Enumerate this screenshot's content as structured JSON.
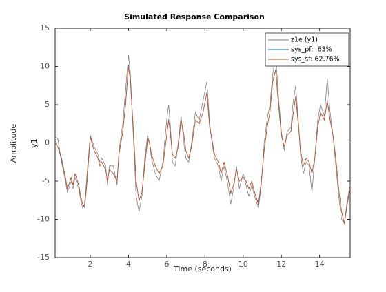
{
  "chart_data": {
    "type": "line",
    "title": "Simulated Response Comparison",
    "xlabel": "Time (seconds)",
    "ylabel": "Amplitude",
    "channel_label": "y1",
    "xlim": [
      0.16,
      15.6
    ],
    "ylim": [
      -15,
      15
    ],
    "xticks": [
      2,
      4,
      6,
      8,
      10,
      12,
      14
    ],
    "yticks": [
      -15,
      -10,
      -5,
      0,
      5,
      10,
      15
    ],
    "grid": false,
    "legend": "northeast",
    "x": [
      0.16,
      0.3,
      0.5,
      0.7,
      0.8,
      1.0,
      1.1,
      1.2,
      1.4,
      1.5,
      1.6,
      1.7,
      1.8,
      2.0,
      2.2,
      2.4,
      2.5,
      2.6,
      2.8,
      2.9,
      3.0,
      3.2,
      3.4,
      3.5,
      3.7,
      3.85,
      4.0,
      4.1,
      4.25,
      4.4,
      4.55,
      4.7,
      4.85,
      5.0,
      5.1,
      5.2,
      5.4,
      5.6,
      5.8,
      6.0,
      6.1,
      6.2,
      6.3,
      6.45,
      6.6,
      6.75,
      6.9,
      7.0,
      7.15,
      7.3,
      7.5,
      7.7,
      7.9,
      8.1,
      8.25,
      8.4,
      8.5,
      8.7,
      8.85,
      9.0,
      9.2,
      9.35,
      9.5,
      9.65,
      9.8,
      10.0,
      10.15,
      10.3,
      10.45,
      10.6,
      10.8,
      10.95,
      11.1,
      11.25,
      11.4,
      11.55,
      11.7,
      11.85,
      12.0,
      12.15,
      12.3,
      12.5,
      12.6,
      12.75,
      12.9,
      13.0,
      13.15,
      13.3,
      13.45,
      13.6,
      13.75,
      13.9,
      14.05,
      14.25,
      14.4,
      14.55,
      14.7,
      14.85,
      15.0,
      15.15,
      15.3,
      15.45,
      15.6
    ],
    "series": [
      {
        "name": "z1e (y1)",
        "color": "#808080",
        "values": [
          0.8,
          0.5,
          -2.5,
          -5,
          -6.5,
          -5,
          -6,
          -4.5,
          -6,
          -7.5,
          -8.5,
          -8,
          -5,
          1,
          -0.5,
          -1.5,
          -2.5,
          -2,
          -3,
          -5.5,
          -3,
          -3,
          -5.5,
          -1,
          2.5,
          7,
          11.5,
          9,
          1,
          -7,
          -9,
          -7,
          -2,
          1,
          0,
          -2,
          -4,
          -5,
          -2.5,
          3,
          5,
          2,
          -2.5,
          -3,
          0,
          3.5,
          0,
          -2,
          -2.5,
          0,
          4,
          3,
          5.5,
          8,
          2.5,
          -0.5,
          -2,
          -3,
          -5,
          -3,
          -5.5,
          -8,
          -6,
          -3,
          -6,
          -4,
          -5.5,
          -7,
          -5.5,
          -7,
          -8.5,
          -5.5,
          0,
          3,
          5,
          9,
          11.5,
          6,
          1.5,
          -1,
          1.5,
          2,
          5,
          7.5,
          2.5,
          -1.5,
          -4,
          -2.5,
          -3,
          -6.5,
          -2,
          3,
          5,
          3.5,
          8.5,
          4,
          1,
          -3,
          -7,
          -10,
          -10.5,
          -7.5,
          -5.5
        ]
      },
      {
        "name": "sys_pf:  63%",
        "color": "#0072bd",
        "values": [
          0,
          -0.5,
          -2.2,
          -4.5,
          -6,
          -4.6,
          -5.5,
          -4,
          -5.6,
          -7,
          -8,
          -8.4,
          -6,
          0.8,
          -1,
          -2,
          -3,
          -2.5,
          -3.5,
          -5,
          -3.5,
          -4,
          -5,
          -1.5,
          1.5,
          5.2,
          10.2,
          8,
          2,
          -5,
          -7.6,
          -6.5,
          -3,
          0.5,
          0,
          -1.5,
          -3,
          -4,
          -3,
          1,
          3.1,
          1,
          -1.5,
          -2,
          -0.5,
          3,
          1,
          -1,
          -2,
          -0.5,
          3,
          2.5,
          4,
          6.6,
          2,
          0,
          -1.5,
          -2.5,
          -4,
          -2.5,
          -4.5,
          -6.6,
          -5.5,
          -3.5,
          -5,
          -4.5,
          -5,
          -6,
          -5,
          -6.5,
          -8.1,
          -5,
          -1,
          2,
          4,
          8.1,
          9.6,
          5,
          1,
          -0.5,
          1,
          1.5,
          3.5,
          6.1,
          2,
          -1,
          -3,
          -2,
          -2.5,
          -4,
          -2,
          2,
          4,
          3,
          5.6,
          3,
          1,
          -2,
          -6,
          -9,
          -10.6,
          -8,
          -6
        ]
      },
      {
        "name": "sys_sf: 62.76%",
        "color": "#d95319",
        "values": [
          0,
          -0.5,
          -2,
          -4.5,
          -6,
          -4.5,
          -5.5,
          -4,
          -5.5,
          -7,
          -8,
          -8.3,
          -6,
          0.7,
          -1,
          -2,
          -3,
          -2.5,
          -3.5,
          -5,
          -3.5,
          -4,
          -5,
          -1.5,
          1.5,
          5,
          10,
          8,
          2,
          -5,
          -7.5,
          -6.5,
          -3,
          0.5,
          0,
          -1.5,
          -3,
          -4,
          -3,
          1,
          3,
          1,
          -1.5,
          -2,
          -0.5,
          3,
          1,
          -1,
          -2,
          -0.5,
          3,
          2.5,
          4,
          6.5,
          2,
          0,
          -1.5,
          -2.5,
          -4,
          -2.5,
          -4.5,
          -6.5,
          -5.5,
          -3.5,
          -5,
          -4.5,
          -5,
          -6,
          -5,
          -6.5,
          -8,
          -5,
          -1,
          2,
          4,
          8,
          9.5,
          5,
          1,
          -0.5,
          1,
          1.5,
          3.5,
          6,
          2,
          -1,
          -3,
          -2,
          -2.5,
          -4,
          -2,
          2,
          4,
          3,
          5.5,
          3,
          1,
          -2,
          -6,
          -9,
          -10.5,
          -8,
          -6
        ]
      }
    ]
  }
}
